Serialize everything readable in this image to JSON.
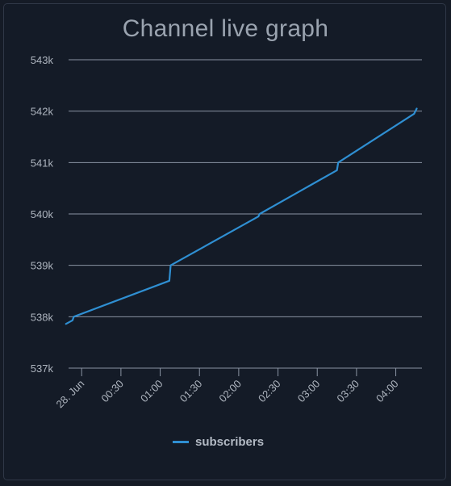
{
  "chart_data": {
    "type": "line",
    "title": "Channel live graph",
    "xlabel": "",
    "ylabel": "",
    "y_ticks": [
      "537k",
      "538k",
      "539k",
      "540k",
      "541k",
      "542k",
      "543k"
    ],
    "ylim": [
      537000,
      543000
    ],
    "x_ticks": [
      "28. Jun",
      "00:30",
      "01:00",
      "01:30",
      "02:00",
      "02:30",
      "03:00",
      "03:30",
      "04:00"
    ],
    "x_tick_times": [
      "00:00",
      "00:30",
      "01:00",
      "01:30",
      "02:00",
      "02:30",
      "03:00",
      "03:30",
      "04:00"
    ],
    "xlim": [
      "23:50",
      "04:20"
    ],
    "grid": true,
    "legend": "bottom",
    "colors": {
      "series": "#2f8fd2",
      "grid": "#8a93a3",
      "text": "#aeb5bf"
    },
    "series": [
      {
        "name": "subscribers",
        "x": [
          "23:48",
          "23:53",
          "23:54",
          "01:07",
          "01:08",
          "02:15",
          "02:16",
          "03:15",
          "03:16",
          "04:14",
          "04:16"
        ],
        "values": [
          537860,
          537930,
          538000,
          538700,
          539000,
          539950,
          540000,
          540850,
          541000,
          541950,
          542050
        ]
      }
    ]
  }
}
